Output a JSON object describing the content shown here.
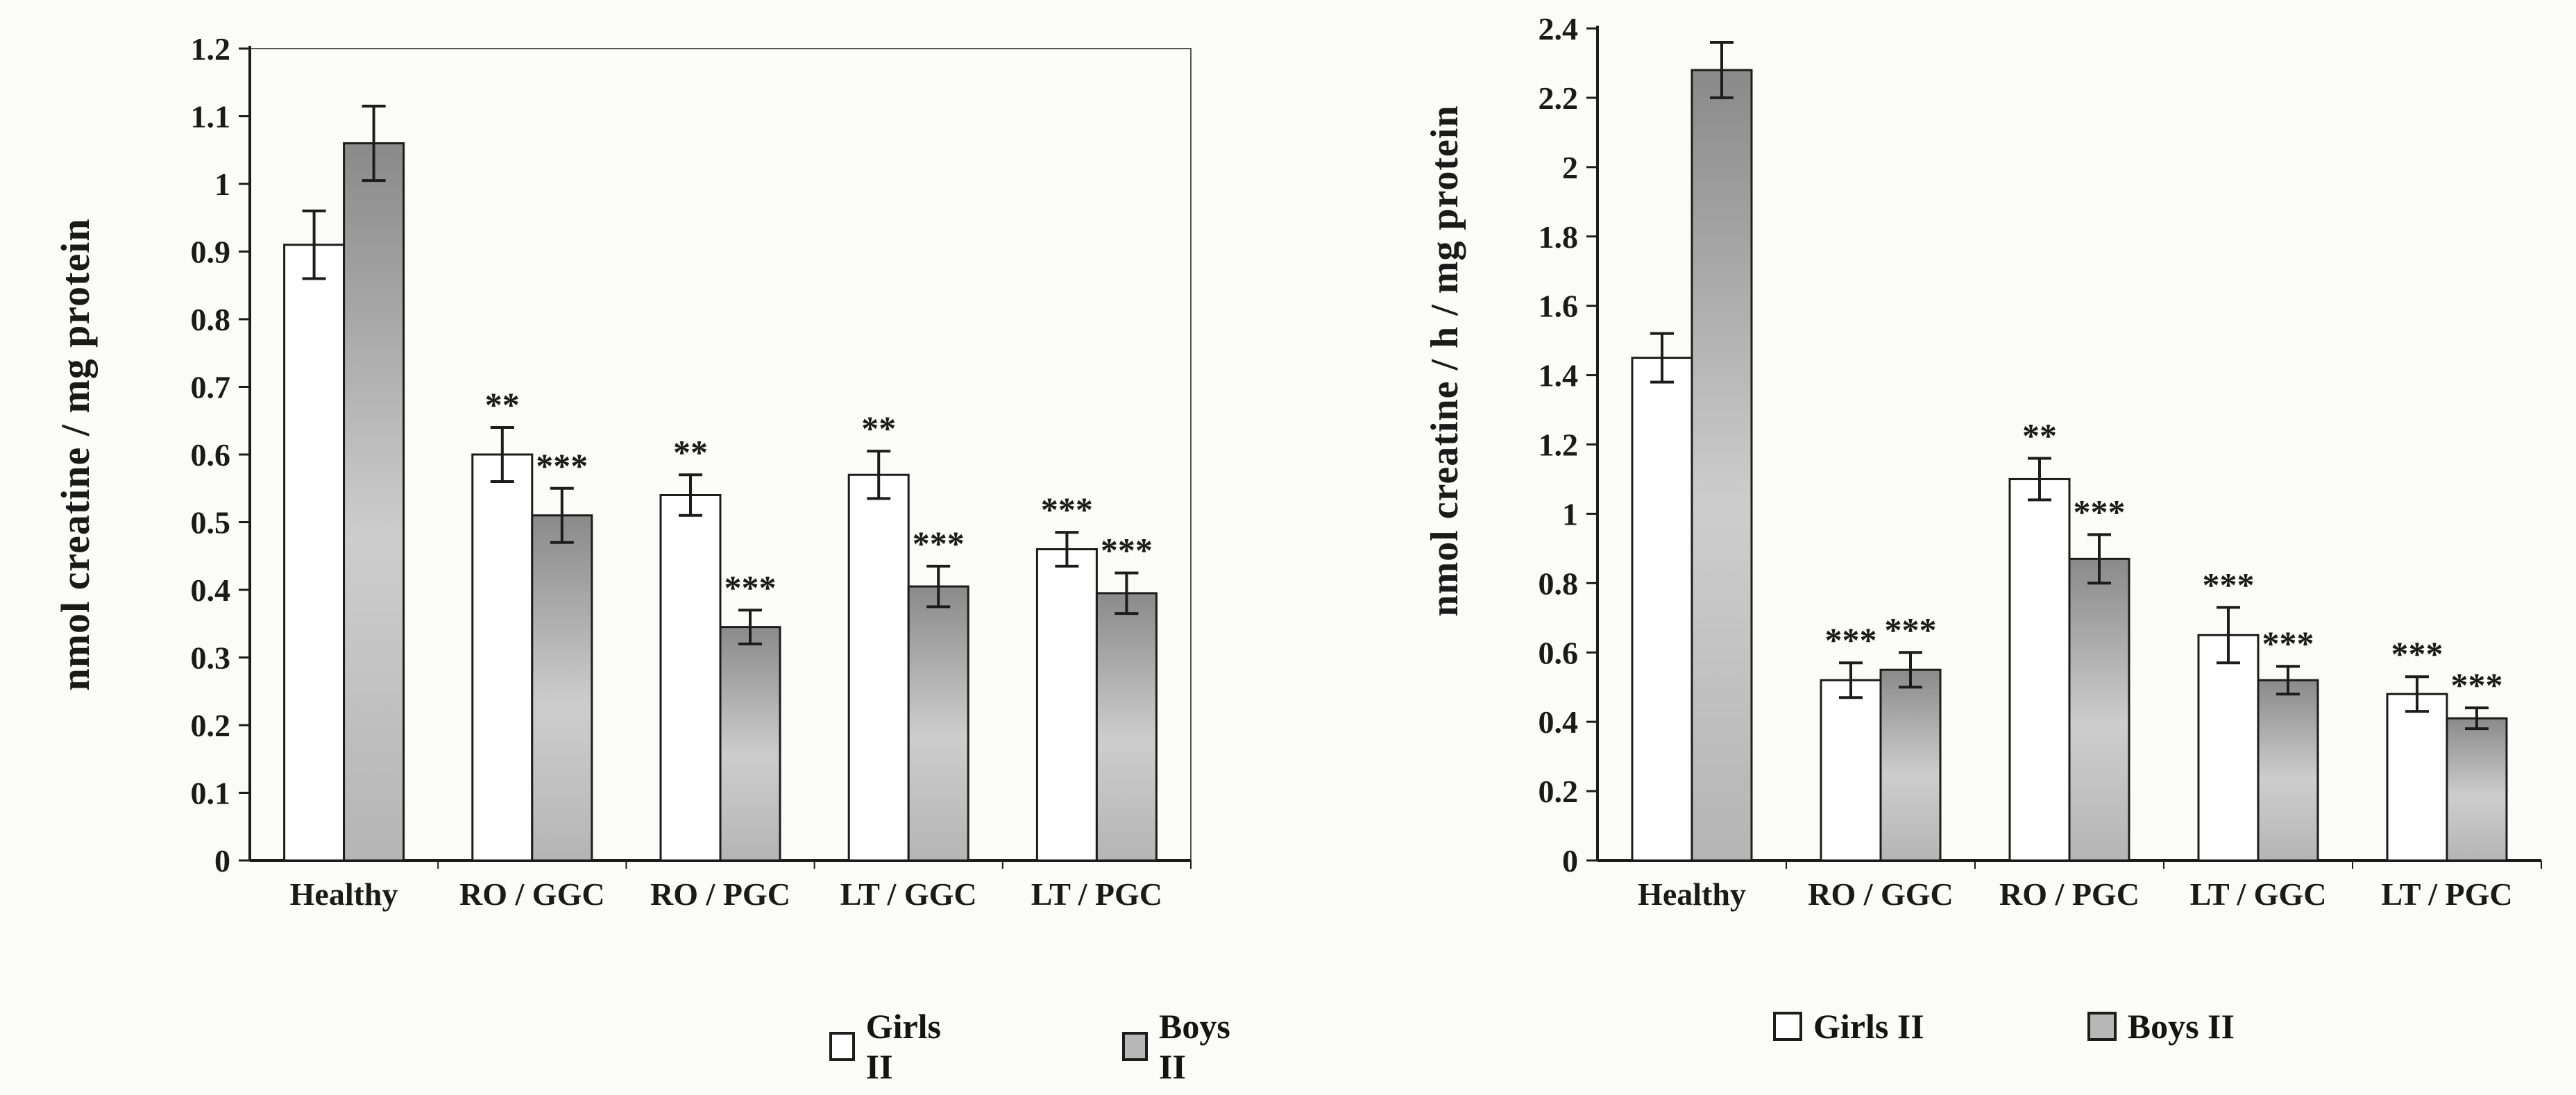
{
  "chart_data": [
    {
      "type": "bar",
      "title": "",
      "xlabel": "",
      "ylabel": "nmol creatine / mg protein",
      "ylim": [
        0,
        1.2
      ],
      "ytick_step": 0.1,
      "ytick_labels": [
        "0",
        "0.1",
        "0.2",
        "0.3",
        "0.4",
        "0.5",
        "0.6",
        "0.7",
        "0.8",
        "0.9",
        "1",
        "1.1",
        "1.2"
      ],
      "categories": [
        "Healthy",
        "RO / GGC",
        "RO / PGC",
        "LT / GGC",
        "LT / PGC"
      ],
      "grid": false,
      "legend_position": "bottom",
      "series": [
        {
          "name": "Girls II",
          "values": [
            0.91,
            0.6,
            0.54,
            0.57,
            0.46
          ],
          "errors": [
            0.05,
            0.04,
            0.03,
            0.035,
            0.025
          ],
          "significance": [
            "",
            "**",
            "**",
            "**",
            "***"
          ]
        },
        {
          "name": "Boys II",
          "values": [
            1.06,
            0.51,
            0.345,
            0.405,
            0.395
          ],
          "errors": [
            0.055,
            0.04,
            0.025,
            0.03,
            0.03
          ],
          "significance": [
            "",
            "***",
            "***",
            "***",
            "***"
          ]
        }
      ]
    },
    {
      "type": "bar",
      "title": "",
      "xlabel": "",
      "ylabel": "nmol creatine / h / mg protein",
      "ylim": [
        0,
        2.4
      ],
      "ytick_step": 0.2,
      "ytick_labels": [
        "0",
        "0.2",
        "0.4",
        "0.6",
        "0.8",
        "1",
        "1.2",
        "1.4",
        "1.6",
        "1.8",
        "2",
        "2.2",
        "2.4"
      ],
      "categories": [
        "Healthy",
        "RO / GGC",
        "RO / PGC",
        "LT / GGC",
        "LT / PGC"
      ],
      "grid": false,
      "legend_position": "bottom",
      "series": [
        {
          "name": "Girls II",
          "values": [
            1.45,
            0.52,
            1.1,
            0.65,
            0.48
          ],
          "errors": [
            0.07,
            0.05,
            0.06,
            0.08,
            0.05
          ],
          "significance": [
            "",
            "***",
            "**",
            "***",
            "***"
          ]
        },
        {
          "name": "Boys II",
          "values": [
            2.28,
            0.55,
            0.87,
            0.52,
            0.41
          ],
          "errors": [
            0.08,
            0.05,
            0.07,
            0.04,
            0.03
          ],
          "significance": [
            "",
            "***",
            "***",
            "***",
            "***"
          ]
        }
      ]
    }
  ],
  "colors": {
    "girls_fill": "#ffffff",
    "boys_fill_top": "#8a8a8a",
    "boys_fill_mid": "#cdcdcd",
    "boys_fill_bottom": "#b5b5b5",
    "stroke": "#1c1c1c",
    "text": "#1a1a1a",
    "background": "#fbfbf9"
  }
}
